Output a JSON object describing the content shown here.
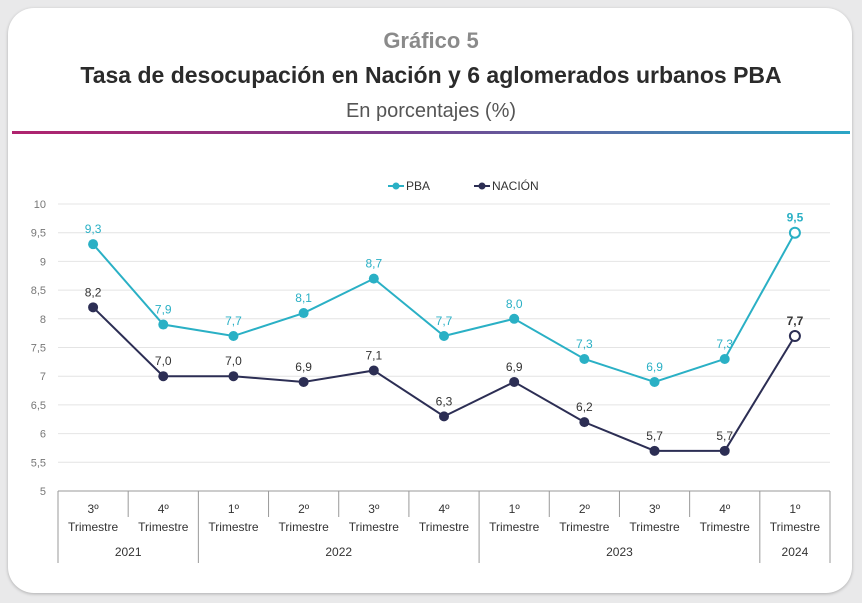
{
  "header": {
    "pre_title": "Gráfico 5",
    "title": "Tasa de desocupación en Nación y 6 aglomerados urbanos PBA",
    "subtitle": "En porcentajes (%)"
  },
  "colors": {
    "pba": "#2ab0c5",
    "nacion": "#2c2e54",
    "grid": "#e4e4e4",
    "accent_bar": [
      "#b0236e",
      "#2aa6c6"
    ]
  },
  "chart_data": {
    "type": "line",
    "title": "Tasa de desocupación en Nación y 6 aglomerados urbanos PBA",
    "ylim": [
      5,
      10
    ],
    "yticks": [
      "5",
      "5,5",
      "6",
      "6,5",
      "7",
      "7,5",
      "8",
      "8,5",
      "9",
      "9,5",
      "10"
    ],
    "grid": true,
    "legend_position": "top",
    "categories": [
      {
        "quarter": "3º",
        "label": "Trimestre",
        "year": "2021"
      },
      {
        "quarter": "4º",
        "label": "Trimestre",
        "year": "2021"
      },
      {
        "quarter": "1º",
        "label": "Trimestre",
        "year": "2022"
      },
      {
        "quarter": "2º",
        "label": "Trimestre",
        "year": "2022"
      },
      {
        "quarter": "3º",
        "label": "Trimestre",
        "year": "2022"
      },
      {
        "quarter": "4º",
        "label": "Trimestre",
        "year": "2022"
      },
      {
        "quarter": "1º",
        "label": "Trimestre",
        "year": "2023"
      },
      {
        "quarter": "2º",
        "label": "Trimestre",
        "year": "2023"
      },
      {
        "quarter": "3º",
        "label": "Trimestre",
        "year": "2023"
      },
      {
        "quarter": "4º",
        "label": "Trimestre",
        "year": "2023"
      },
      {
        "quarter": "1º",
        "label": "Trimestre",
        "year": "2024"
      }
    ],
    "years": [
      "2021",
      "2022",
      "2023",
      "2024"
    ],
    "series": [
      {
        "name": "PBA",
        "values": [
          9.3,
          7.9,
          7.7,
          8.1,
          8.7,
          7.7,
          8.0,
          7.3,
          6.9,
          7.3,
          9.5
        ],
        "labels": [
          "9,3",
          "7,9",
          "7,7",
          "8,1",
          "8,7",
          "7,7",
          "8,0",
          "7,3",
          "6,9",
          "7,3",
          "9,5"
        ]
      },
      {
        "name": "NACIÓN",
        "values": [
          8.2,
          7.0,
          7.0,
          6.9,
          7.1,
          6.3,
          6.9,
          6.2,
          5.7,
          5.7,
          7.7
        ],
        "labels": [
          "8,2",
          "7,0",
          "7,0",
          "6,9",
          "7,1",
          "6,3",
          "6,9",
          "6,2",
          "5,7",
          "5,7",
          "7,7"
        ]
      }
    ]
  }
}
